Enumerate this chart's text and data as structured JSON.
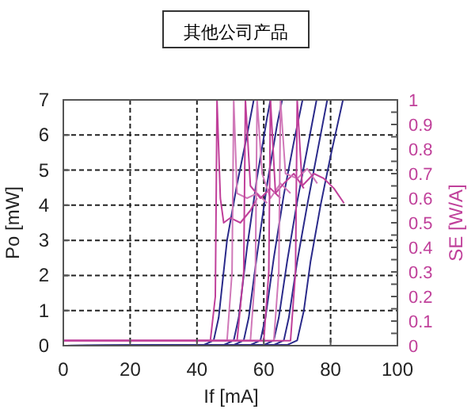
{
  "chart_data": {
    "type": "line",
    "title": "其他公司产品",
    "xlabel": "If [mA]",
    "ylabel": "Po [mW]",
    "y2label": "SE [W/A]",
    "xlim": [
      0,
      100
    ],
    "xticks": [
      0,
      20,
      40,
      60,
      80,
      100
    ],
    "ylim": [
      0,
      7
    ],
    "yticks": [
      0,
      1,
      2,
      3,
      4,
      5,
      6,
      7
    ],
    "y2lim": [
      0,
      1
    ],
    "y2ticks": [
      0,
      {
        "value": 0.05,
        "label": null
      },
      0.1,
      {
        "value": 0.15,
        "label": null
      },
      0.2,
      {
        "value": 0.25,
        "label": null
      },
      0.3,
      {
        "value": 0.35,
        "label": null
      },
      0.4,
      {
        "value": 0.45,
        "label": null
      },
      0.5,
      {
        "value": 0.55,
        "label": null
      },
      0.6,
      {
        "value": 0.65,
        "label": null
      },
      0.7,
      {
        "value": 0.75,
        "label": null
      },
      0.8,
      {
        "value": 0.85,
        "label": null
      },
      0.9,
      {
        "value": 0.95,
        "label": null
      },
      1
    ],
    "grid": true,
    "series": [
      {
        "color": "#2a2a8a",
        "x": [
          0,
          42,
          45,
          46.5,
          49,
          52,
          55,
          57
        ],
        "values": [
          0,
          0.02,
          0.15,
          0.8,
          3,
          4.6,
          6,
          7
        ]
      },
      {
        "color": "#2a2a8a",
        "x": [
          0,
          48,
          51,
          52.5,
          55,
          58,
          61,
          62
        ],
        "values": [
          0,
          0.02,
          0.15,
          0.8,
          2.8,
          4.8,
          6.5,
          7
        ]
      },
      {
        "color": "#2a2a8a",
        "x": [
          0,
          51,
          54,
          55.5,
          58,
          61,
          64,
          65.5
        ],
        "values": [
          0,
          0.02,
          0.15,
          0.8,
          2.6,
          4.6,
          6.3,
          7
        ]
      },
      {
        "color": "#2a2a8a",
        "x": [
          0,
          56,
          59,
          60.5,
          63,
          66,
          69,
          71.6
        ],
        "values": [
          0,
          0.02,
          0.15,
          0.8,
          2.5,
          4.3,
          5.8,
          7
        ]
      },
      {
        "color": "#2a2a8a",
        "x": [
          0,
          60,
          63,
          64.5,
          67,
          70,
          73,
          75.8
        ],
        "values": [
          0,
          0.02,
          0.15,
          0.8,
          2.4,
          4.1,
          5.6,
          7
        ]
      },
      {
        "color": "#2a2a8a",
        "x": [
          0,
          63,
          66,
          67.5,
          70,
          73,
          76,
          79
        ],
        "values": [
          0,
          0.02,
          0.15,
          0.8,
          2.4,
          4,
          5.5,
          7
        ]
      },
      {
        "color": "#2a2a8a",
        "x": [
          0,
          67,
          70,
          72,
          74,
          77,
          80,
          83.7
        ],
        "values": [
          0,
          0.02,
          0.15,
          1,
          2.4,
          4,
          5.4,
          7
        ]
      },
      {
        "color": "#c0409a",
        "axis": "y2",
        "x": [
          0,
          44,
          45.5,
          46,
          47,
          48,
          50,
          53,
          56,
          58
        ],
        "values": [
          0.02,
          0.02,
          0.2,
          1,
          0.6,
          0.5,
          0.52,
          0.5,
          0.55,
          0.6
        ]
      },
      {
        "color": "#d078b8",
        "axis": "y2",
        "x": [
          0,
          49,
          50.5,
          51,
          52,
          55,
          58,
          61
        ],
        "values": [
          0.02,
          0.02,
          0.3,
          1,
          0.62,
          0.6,
          0.62,
          0.58
        ]
      },
      {
        "color": "#c0409a",
        "axis": "y2",
        "x": [
          0,
          52,
          54,
          54.5,
          56,
          59,
          62,
          65
        ],
        "values": [
          0.02,
          0.02,
          0.3,
          1,
          0.65,
          0.6,
          0.64,
          0.6
        ]
      },
      {
        "color": "#d078b8",
        "axis": "y2",
        "x": [
          0,
          56,
          57.5,
          58,
          59.5,
          62,
          65,
          68
        ],
        "values": [
          0.02,
          0.02,
          0.3,
          1,
          0.7,
          0.6,
          0.66,
          0.62
        ]
      },
      {
        "color": "#c0409a",
        "axis": "y2",
        "x": [
          0,
          60,
          61.5,
          62,
          63.5,
          66,
          69,
          72
        ],
        "values": [
          0.02,
          0.02,
          0.3,
          1,
          0.62,
          0.66,
          0.7,
          0.64
        ]
      },
      {
        "color": "#d078b8",
        "axis": "y2",
        "x": [
          0,
          63,
          64.5,
          65,
          66.5,
          70,
          73,
          76
        ],
        "values": [
          0.02,
          0.02,
          0.3,
          1,
          0.7,
          0.68,
          0.72,
          0.66
        ]
      },
      {
        "color": "#c0409a",
        "axis": "y2",
        "x": [
          0,
          68,
          69.5,
          70,
          71.5,
          75,
          78,
          81,
          84
        ],
        "values": [
          0.02,
          0.02,
          0.3,
          1,
          0.65,
          0.7,
          0.68,
          0.64,
          0.58
        ]
      }
    ]
  }
}
